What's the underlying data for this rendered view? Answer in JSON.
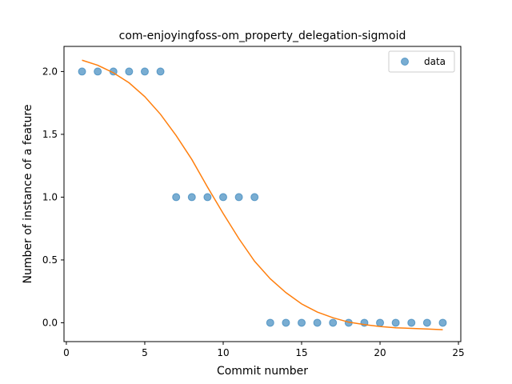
{
  "chart_data": {
    "type": "scatter",
    "title": "com-enjoyingfoss-om_property_delegation-sigmoid",
    "xlabel": "Commit number",
    "ylabel": "Number of instance of a feature",
    "xlim": [
      -0.15,
      25.15
    ],
    "ylim": [
      -0.15,
      2.2
    ],
    "xticks": [
      0,
      5,
      10,
      15,
      20,
      25
    ],
    "xtick_labels": [
      "0",
      "5",
      "10",
      "15",
      "20",
      "25"
    ],
    "yticks": [
      0.0,
      0.5,
      1.0,
      1.5,
      2.0
    ],
    "ytick_labels": [
      "0.0",
      "0.5",
      "1.0",
      "1.5",
      "2.0"
    ],
    "legend_position": "upper right",
    "grid": false,
    "series": [
      {
        "name": "data",
        "kind": "scatter",
        "color": "#1f77b4",
        "x": [
          1,
          2,
          3,
          4,
          5,
          6,
          7,
          8,
          9,
          10,
          11,
          12,
          13,
          14,
          15,
          16,
          17,
          18,
          19,
          20,
          21,
          22,
          23,
          24
        ],
        "y": [
          2,
          2,
          2,
          2,
          2,
          2,
          1,
          1,
          1,
          1,
          1,
          1,
          0,
          0,
          0,
          0,
          0,
          0,
          0,
          0,
          0,
          0,
          0,
          0
        ]
      },
      {
        "kind": "line",
        "color": "#ff7f0e",
        "x": [
          1,
          2,
          3,
          4,
          5,
          6,
          7,
          8,
          9,
          10,
          11,
          12,
          13,
          14,
          15,
          16,
          17,
          18,
          19,
          20,
          21,
          22,
          23,
          24
        ],
        "y": [
          2.09,
          2.05,
          1.99,
          1.91,
          1.8,
          1.66,
          1.49,
          1.3,
          1.08,
          0.87,
          0.67,
          0.49,
          0.35,
          0.24,
          0.15,
          0.085,
          0.04,
          0.005,
          -0.015,
          -0.03,
          -0.04,
          -0.045,
          -0.05,
          -0.055
        ]
      }
    ]
  }
}
